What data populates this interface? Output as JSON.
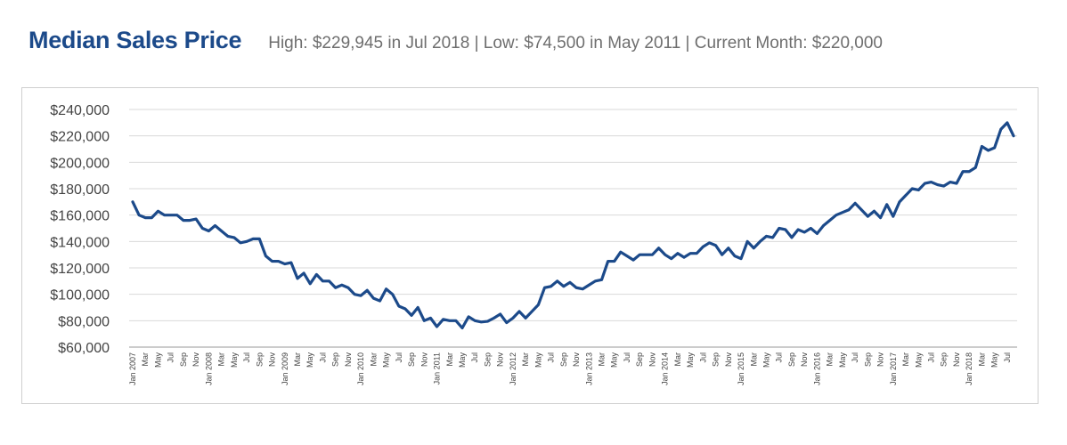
{
  "header": {
    "title": "Median Sales Price",
    "subtitle": "High: $229,945 in Jul 2018  |  Low: $74,500 in May 2011  |  Current Month: $220,000"
  },
  "colors": {
    "line": "#1c4a8a",
    "title": "#1c4a8a",
    "grid": "#d9d9d9"
  },
  "chart_data": {
    "type": "line",
    "title": "Median Sales Price",
    "grid": true,
    "ylim": [
      60000,
      240000
    ],
    "yticks": [
      60000,
      80000,
      100000,
      120000,
      140000,
      160000,
      180000,
      200000,
      220000,
      240000
    ],
    "ytick_labels": [
      "$60,000",
      "$80,000",
      "$100,000",
      "$120,000",
      "$140,000",
      "$160,000",
      "$180,000",
      "$200,000",
      "$220,000",
      "$240,000"
    ],
    "x_start": "Jan 2007",
    "x_ticks": [
      "Jan 2007",
      "Mar",
      "May",
      "Jul",
      "Sep",
      "Nov",
      "Jan 2008",
      "Mar",
      "May",
      "Jul",
      "Sep",
      "Nov",
      "Jan 2009",
      "Mar",
      "May",
      "Jul",
      "Sep",
      "Nov",
      "Jan 2010",
      "Mar",
      "May",
      "Jul",
      "Sep",
      "Nov",
      "Jan 2011",
      "Mar",
      "May",
      "Jul",
      "Sep",
      "Nov",
      "Jan 2012",
      "Mar",
      "May",
      "Jul",
      "Sep",
      "Nov",
      "Jan 2013",
      "Mar",
      "May",
      "Jul",
      "Sep",
      "Nov",
      "Jan 2014",
      "Mar",
      "May",
      "Jul",
      "Sep",
      "Nov",
      "Jan 2015",
      "Mar",
      "May",
      "Jul",
      "Sep",
      "Nov",
      "Jan 2016",
      "Mar",
      "May",
      "Jul",
      "Sep",
      "Nov",
      "Jan 2017",
      "Mar",
      "May",
      "Jul",
      "Sep",
      "Nov",
      "Jan 2018",
      "Mar",
      "May",
      "Jul"
    ],
    "series": [
      {
        "values": [
          170000,
          160000,
          158000,
          158000,
          163000,
          160000,
          160000,
          160000,
          156000,
          156000,
          157000,
          150000,
          148000,
          152000,
          148000,
          144000,
          143000,
          139000,
          140000,
          142000,
          142000,
          129000,
          125000,
          125000,
          123000,
          124000,
          112000,
          116000,
          108000,
          115000,
          110000,
          110000,
          105000,
          107000,
          105000,
          100000,
          99000,
          103000,
          97000,
          95000,
          104000,
          100000,
          91000,
          89000,
          84000,
          90000,
          80000,
          82000,
          75500,
          81000,
          80000,
          80000,
          74500,
          83000,
          80000,
          79000,
          79500,
          82000,
          85000,
          78500,
          82000,
          87000,
          82000,
          87000,
          92000,
          105000,
          106000,
          110000,
          106000,
          109000,
          105000,
          104000,
          107000,
          110000,
          111000,
          125000,
          125000,
          132000,
          129000,
          126000,
          130000,
          130000,
          130000,
          135000,
          130000,
          127000,
          131000,
          128000,
          131000,
          131000,
          136000,
          139000,
          137000,
          130000,
          135000,
          129000,
          127000,
          140000,
          135000,
          140000,
          144000,
          143000,
          150000,
          149000,
          143000,
          149000,
          147000,
          150000,
          146000,
          152000,
          156000,
          160000,
          162000,
          164000,
          169000,
          164000,
          159000,
          163000,
          158000,
          168000,
          159000,
          170000,
          175000,
          180000,
          179000,
          184000,
          185000,
          183000,
          182000,
          185000,
          184000,
          193000,
          193000,
          196000,
          212000,
          209000,
          211000,
          225000,
          229945,
          220000
        ]
      }
    ]
  }
}
